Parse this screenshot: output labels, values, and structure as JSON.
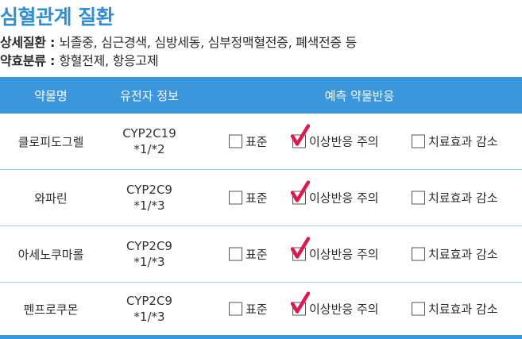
{
  "title": "심혈관계 질환",
  "info": {
    "diseases_label": "상세질환",
    "diseases_sep": " : ",
    "diseases_value": "뇌졸중, 심근경색, 심방세동, 심부정맥혈전증, 폐색전증 등",
    "drugs_label": "약효분류",
    "drugs_sep": " : ",
    "drugs_value": "항혈전제, 항응고제"
  },
  "table": {
    "headers": [
      "약물명",
      "유전자 정보",
      "예측 약물반응"
    ],
    "option_labels": [
      "표준",
      "이상반응 주의",
      "치료효과 감소"
    ],
    "rows": [
      {
        "drug": "클로피도그렐",
        "gene": "CYP2C19",
        "genotype": "*1/*2",
        "checked": 1
      },
      {
        "drug": "와파린",
        "gene": "CYP2C9",
        "genotype": "*1/*3",
        "checked": 1
      },
      {
        "drug": "아세노쿠마롤",
        "gene": "CYP2C9",
        "genotype": "*1/*3",
        "checked": 1
      },
      {
        "drug": "펜프로쿠몬",
        "gene": "CYP2C9",
        "genotype": "*1/*3",
        "checked": 1
      }
    ]
  },
  "colors": {
    "accent": "#3a97db",
    "title": "#2f8fd6",
    "check": "#e3174d"
  }
}
